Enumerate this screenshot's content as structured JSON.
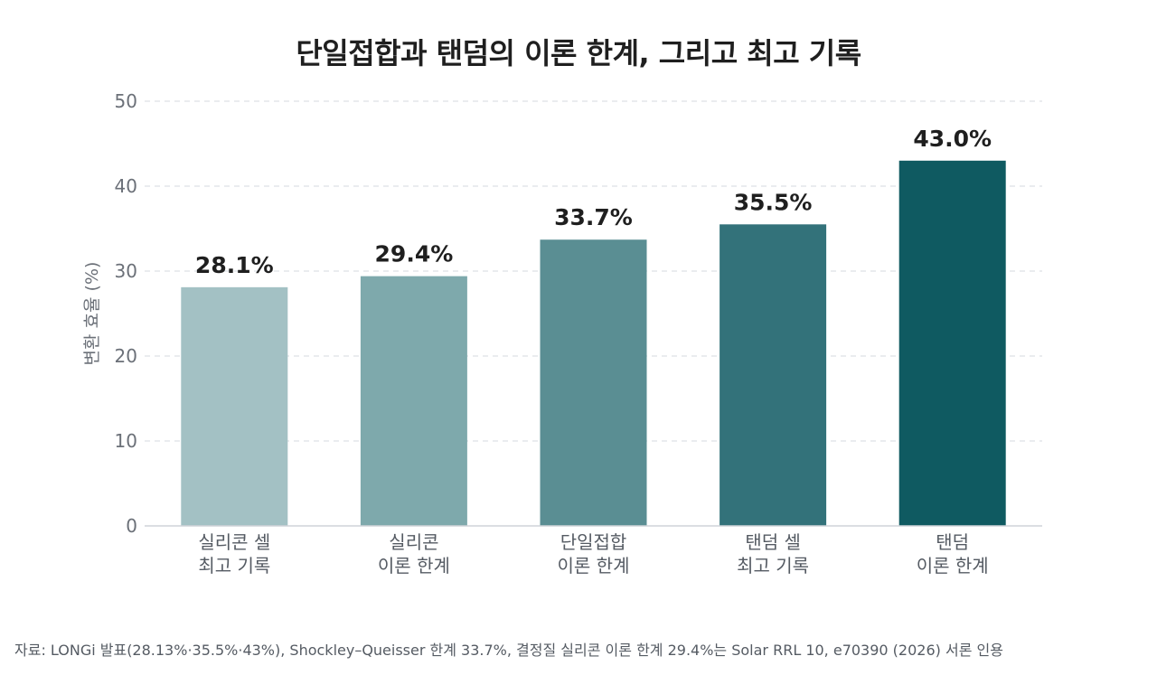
{
  "chart_data": {
    "type": "bar",
    "title": "단일접합과 탠덤의 이론 한계, 그리고 최고 기록",
    "ylabel": "변환 효율 (%)",
    "ylim": [
      0,
      50
    ],
    "yticks": [
      0,
      10,
      20,
      30,
      40,
      50
    ],
    "grid": true,
    "categories": [
      [
        "실리콘 셀",
        "최고 기록"
      ],
      [
        "실리콘",
        "이론 한계"
      ],
      [
        "단일접합",
        "이론 한계"
      ],
      [
        "탠덤 셀",
        "최고 기록"
      ],
      [
        "탠덤",
        "이론 한계"
      ]
    ],
    "values": [
      28.1,
      29.4,
      33.7,
      35.5,
      43.0
    ],
    "data_labels": [
      "28.1%",
      "29.4%",
      "33.7%",
      "35.5%",
      "43.0%"
    ],
    "colors": [
      "#a3c1c4",
      "#7ea9ac",
      "#5a8e93",
      "#33727a",
      "#0f5a61"
    ]
  },
  "source_note": "자료: LONGi 발표(28.13%·35.5%·43%), Shockley–Queisser 한계 33.7%, 결정질 실리콘 이론 한계 29.4%는 Solar RRL 10, e70390 (2026) 서론 인용"
}
